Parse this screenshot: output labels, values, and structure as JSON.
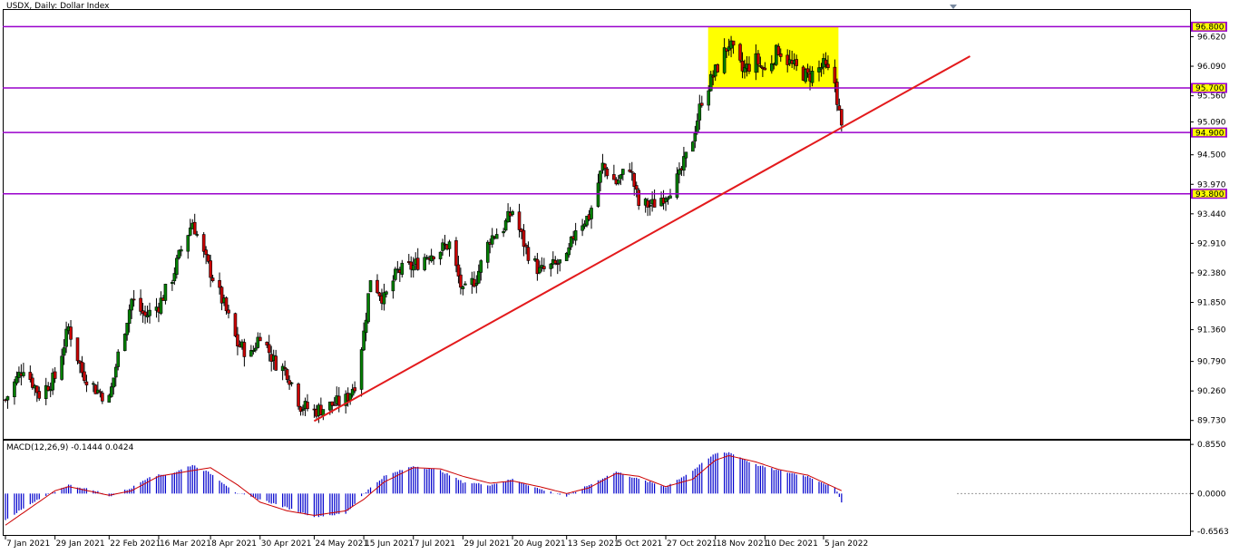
{
  "chart_data": [
    {
      "type": "candlestick",
      "symbol": "USDX",
      "timeframe": "Daily",
      "title": "USDX, Daily:  Dollar Index",
      "ylim": [
        89.4,
        97.1
      ],
      "y_ticks": [
        "96.620",
        "96.090",
        "95.560",
        "95.090",
        "94.500",
        "93.970",
        "93.440",
        "92.910",
        "92.380",
        "91.850",
        "91.360",
        "90.790",
        "90.260",
        "89.730"
      ],
      "x_ticks": [
        "7 Jan 2021",
        "29 Jan 2021",
        "22 Feb 2021",
        "16 Mar 2021",
        "8 Apr 2021",
        "30 Apr 2021",
        "24 May 2021",
        "15 Jun 2021",
        "7 Jul 2021",
        "29 Jul 2021",
        "20 Aug 2021",
        "13 Sep 2021",
        "5 Oct 2021",
        "27 Oct 2021",
        "18 Nov 2021",
        "10 Dec 2021",
        "5 Jan 2022"
      ],
      "close_path": [
        [
          "7 Jan 2021",
          90.1
        ],
        [
          "15 Jan 2021",
          90.7
        ],
        [
          "22 Jan 2021",
          90.2
        ],
        [
          "29 Jan 2021",
          90.5
        ],
        [
          "4 Feb 2021",
          91.4
        ],
        [
          "10 Feb 2021",
          90.6
        ],
        [
          "16 Feb 2021",
          90.3
        ],
        [
          "22 Feb 2021",
          90.1
        ],
        [
          "26 Feb 2021",
          90.9
        ],
        [
          "4 Mar 2021",
          91.9
        ],
        [
          "10 Mar 2021",
          91.6
        ],
        [
          "16 Mar 2021",
          91.8
        ],
        [
          "22 Mar 2021",
          92.3
        ],
        [
          "26 Mar 2021",
          92.8
        ],
        [
          "31 Mar 2021",
          93.3
        ],
        [
          "5 Apr 2021",
          92.7
        ],
        [
          "8 Apr 2021",
          92.4
        ],
        [
          "14 Apr 2021",
          91.8
        ],
        [
          "20 Apr 2021",
          91.1
        ],
        [
          "26 Apr 2021",
          90.9
        ],
        [
          "30 Apr 2021",
          91.3
        ],
        [
          "6 May 2021",
          90.8
        ],
        [
          "12 May 2021",
          90.6
        ],
        [
          "18 May 2021",
          90.0
        ],
        [
          "24 May 2021",
          89.9
        ],
        [
          "31 May 2021",
          90.0
        ],
        [
          "7 Jun 2021",
          90.1
        ],
        [
          "11 Jun 2021",
          90.4
        ],
        [
          "15 Jun 2021",
          91.3
        ],
        [
          "18 Jun 2021",
          92.3
        ],
        [
          "24 Jun 2021",
          91.9
        ],
        [
          "30 Jun 2021",
          92.4
        ],
        [
          "7 Jul 2021",
          92.5
        ],
        [
          "13 Jul 2021",
          92.7
        ],
        [
          "19 Jul 2021",
          92.8
        ],
        [
          "23 Jul 2021",
          92.9
        ],
        [
          "29 Jul 2021",
          92.0
        ],
        [
          "4 Aug 2021",
          92.3
        ],
        [
          "10 Aug 2021",
          93.0
        ],
        [
          "16 Aug 2021",
          93.2
        ],
        [
          "20 Aug 2021",
          93.5
        ],
        [
          "26 Aug 2021",
          92.8
        ],
        [
          "1 Sep 2021",
          92.4
        ],
        [
          "7 Sep 2021",
          92.5
        ],
        [
          "13 Sep 2021",
          92.6
        ],
        [
          "17 Sep 2021",
          93.2
        ],
        [
          "23 Sep 2021",
          93.4
        ],
        [
          "29 Sep 2021",
          94.3
        ],
        [
          "5 Oct 2021",
          94.0
        ],
        [
          "11 Oct 2021",
          94.3
        ],
        [
          "15 Oct 2021",
          93.6
        ],
        [
          "21 Oct 2021",
          93.6
        ],
        [
          "27 Oct 2021",
          93.8
        ],
        [
          "2 Nov 2021",
          94.1
        ],
        [
          "8 Nov 2021",
          94.8
        ],
        [
          "12 Nov 2021",
          95.5
        ],
        [
          "18 Nov 2021",
          96.0
        ],
        [
          "24 Nov 2021",
          96.5
        ],
        [
          "30 Nov 2021",
          96.0
        ],
        [
          "6 Dec 2021",
          96.2
        ],
        [
          "10 Dec 2021",
          96.0
        ],
        [
          "16 Dec 2021",
          96.4
        ],
        [
          "22 Dec 2021",
          96.1
        ],
        [
          "29 Dec 2021",
          95.9
        ],
        [
          "5 Jan 2022",
          96.1
        ],
        [
          "10 Jan 2022",
          95.8
        ],
        [
          "13 Jan 2022",
          94.95
        ]
      ],
      "horizontal_levels": [
        {
          "label": "96.800",
          "value": 96.8,
          "color": "#9900cc"
        },
        {
          "label": "95.700",
          "value": 95.7,
          "color": "#9900cc"
        },
        {
          "label": "94.900",
          "value": 94.9,
          "color": "#9900cc"
        },
        {
          "label": "93.800",
          "value": 93.8,
          "color": "#9900cc"
        }
      ],
      "trendline": {
        "from": [
          "24 May 2021",
          89.72
        ],
        "to": [
          "10 Jan 2022",
          94.92
        ],
        "extends_right": true,
        "color": "#e31a1c"
      },
      "range_box": {
        "from": "18 Nov 2021",
        "to": "10 Jan 2022",
        "high": 96.8,
        "low": 95.7,
        "color": "#ffff00"
      },
      "colors": {
        "up": "#008000",
        "down": "#cc0000",
        "level": "#9900cc",
        "trend": "#e31a1c",
        "label_bg": "#ffff00"
      }
    },
    {
      "type": "macd",
      "title": "MACD(12,26,9) -0.1444 0.0424",
      "params": [
        12,
        26,
        9
      ],
      "value": -0.1444,
      "signal": 0.0424,
      "ylim": [
        -0.72,
        0.92
      ],
      "y_ticks": [
        "0.8550",
        "0.0000",
        "-0.6563"
      ],
      "hist_path": [
        [
          "7 Jan 2021",
          -0.45
        ],
        [
          "22 Jan 2021",
          -0.1
        ],
        [
          "4 Feb 2021",
          0.15
        ],
        [
          "16 Feb 2021",
          0.05
        ],
        [
          "22 Feb 2021",
          -0.05
        ],
        [
          "4 Mar 2021",
          0.1
        ],
        [
          "12 Mar 2021",
          0.3
        ],
        [
          "22 Mar 2021",
          0.35
        ],
        [
          "31 Mar 2021",
          0.5
        ],
        [
          "8 Apr 2021",
          0.35
        ],
        [
          "20 Apr 2021",
          0.0
        ],
        [
          "30 Apr 2021",
          -0.1
        ],
        [
          "12 May 2021",
          -0.25
        ],
        [
          "24 May 2021",
          -0.4
        ],
        [
          "7 Jun 2021",
          -0.35
        ],
        [
          "15 Jun 2021",
          0.0
        ],
        [
          "24 Jun 2021",
          0.3
        ],
        [
          "7 Jul 2021",
          0.48
        ],
        [
          "19 Jul 2021",
          0.4
        ],
        [
          "29 Jul 2021",
          0.2
        ],
        [
          "10 Aug 2021",
          0.15
        ],
        [
          "20 Aug 2021",
          0.25
        ],
        [
          "1 Sep 2021",
          0.08
        ],
        [
          "13 Sep 2021",
          -0.05
        ],
        [
          "23 Sep 2021",
          0.15
        ],
        [
          "5 Oct 2021",
          0.38
        ],
        [
          "15 Oct 2021",
          0.25
        ],
        [
          "27 Oct 2021",
          0.12
        ],
        [
          "8 Nov 2021",
          0.4
        ],
        [
          "18 Nov 2021",
          0.7
        ],
        [
          "24 Nov 2021",
          0.72
        ],
        [
          "6 Dec 2021",
          0.5
        ],
        [
          "16 Dec 2021",
          0.4
        ],
        [
          "29 Dec 2021",
          0.3
        ],
        [
          "10 Jan 2022",
          0.1
        ],
        [
          "13 Jan 2022",
          -0.14
        ]
      ],
      "signal_path": [
        [
          "7 Jan 2021",
          -0.55
        ],
        [
          "29 Jan 2021",
          0.05
        ],
        [
          "4 Feb 2021",
          0.12
        ],
        [
          "22 Feb 2021",
          -0.03
        ],
        [
          "4 Mar 2021",
          0.05
        ],
        [
          "16 Mar 2021",
          0.3
        ],
        [
          "31 Mar 2021",
          0.4
        ],
        [
          "8 Apr 2021",
          0.45
        ],
        [
          "20 Apr 2021",
          0.15
        ],
        [
          "30 Apr 2021",
          -0.15
        ],
        [
          "12 May 2021",
          -0.3
        ],
        [
          "24 May 2021",
          -0.38
        ],
        [
          "7 Jun 2021",
          -0.3
        ],
        [
          "15 Jun 2021",
          -0.1
        ],
        [
          "24 Jun 2021",
          0.2
        ],
        [
          "7 Jul 2021",
          0.45
        ],
        [
          "19 Jul 2021",
          0.43
        ],
        [
          "29 Jul 2021",
          0.3
        ],
        [
          "10 Aug 2021",
          0.18
        ],
        [
          "20 Aug 2021",
          0.22
        ],
        [
          "1 Sep 2021",
          0.12
        ],
        [
          "13 Sep 2021",
          0.0
        ],
        [
          "23 Sep 2021",
          0.1
        ],
        [
          "5 Oct 2021",
          0.35
        ],
        [
          "15 Oct 2021",
          0.3
        ],
        [
          "27 Oct 2021",
          0.12
        ],
        [
          "8 Nov 2021",
          0.25
        ],
        [
          "18 Nov 2021",
          0.58
        ],
        [
          "24 Nov 2021",
          0.66
        ],
        [
          "6 Dec 2021",
          0.55
        ],
        [
          "16 Dec 2021",
          0.42
        ],
        [
          "29 Dec 2021",
          0.32
        ],
        [
          "13 Jan 2022",
          0.05
        ]
      ],
      "colors": {
        "histogram": "#0000cc",
        "signal": "#cc0000"
      }
    }
  ]
}
